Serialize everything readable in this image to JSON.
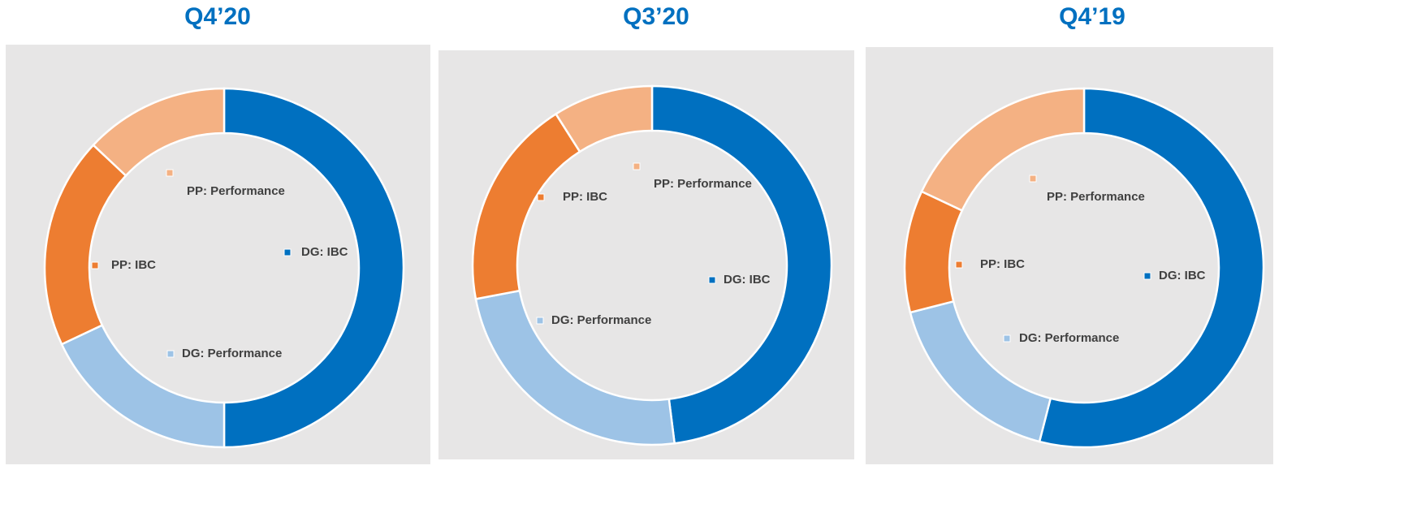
{
  "chart_data": [
    {
      "type": "donut",
      "title": "Q4’20",
      "categories": [
        "DG: IBC",
        "DG: Performance",
        "PP: IBC",
        "PP: Performance"
      ],
      "values": [
        50,
        18,
        19,
        13
      ],
      "colors": [
        "#0070c0",
        "#9dc3e6",
        "#ed7d31",
        "#f4b183"
      ]
    },
    {
      "type": "donut",
      "title": "Q3’20",
      "categories": [
        "DG: IBC",
        "DG: Performance",
        "PP: IBC",
        "PP: Performance"
      ],
      "values": [
        48,
        24,
        19,
        9
      ],
      "colors": [
        "#0070c0",
        "#9dc3e6",
        "#ed7d31",
        "#f4b183"
      ]
    },
    {
      "type": "donut",
      "title": "Q4’19",
      "categories": [
        "DG: IBC",
        "DG: Performance",
        "PP: IBC",
        "PP: Performance"
      ],
      "values": [
        54,
        17,
        11,
        18
      ],
      "colors": [
        "#0070c0",
        "#9dc3e6",
        "#ed7d31",
        "#f4b183"
      ]
    }
  ]
}
